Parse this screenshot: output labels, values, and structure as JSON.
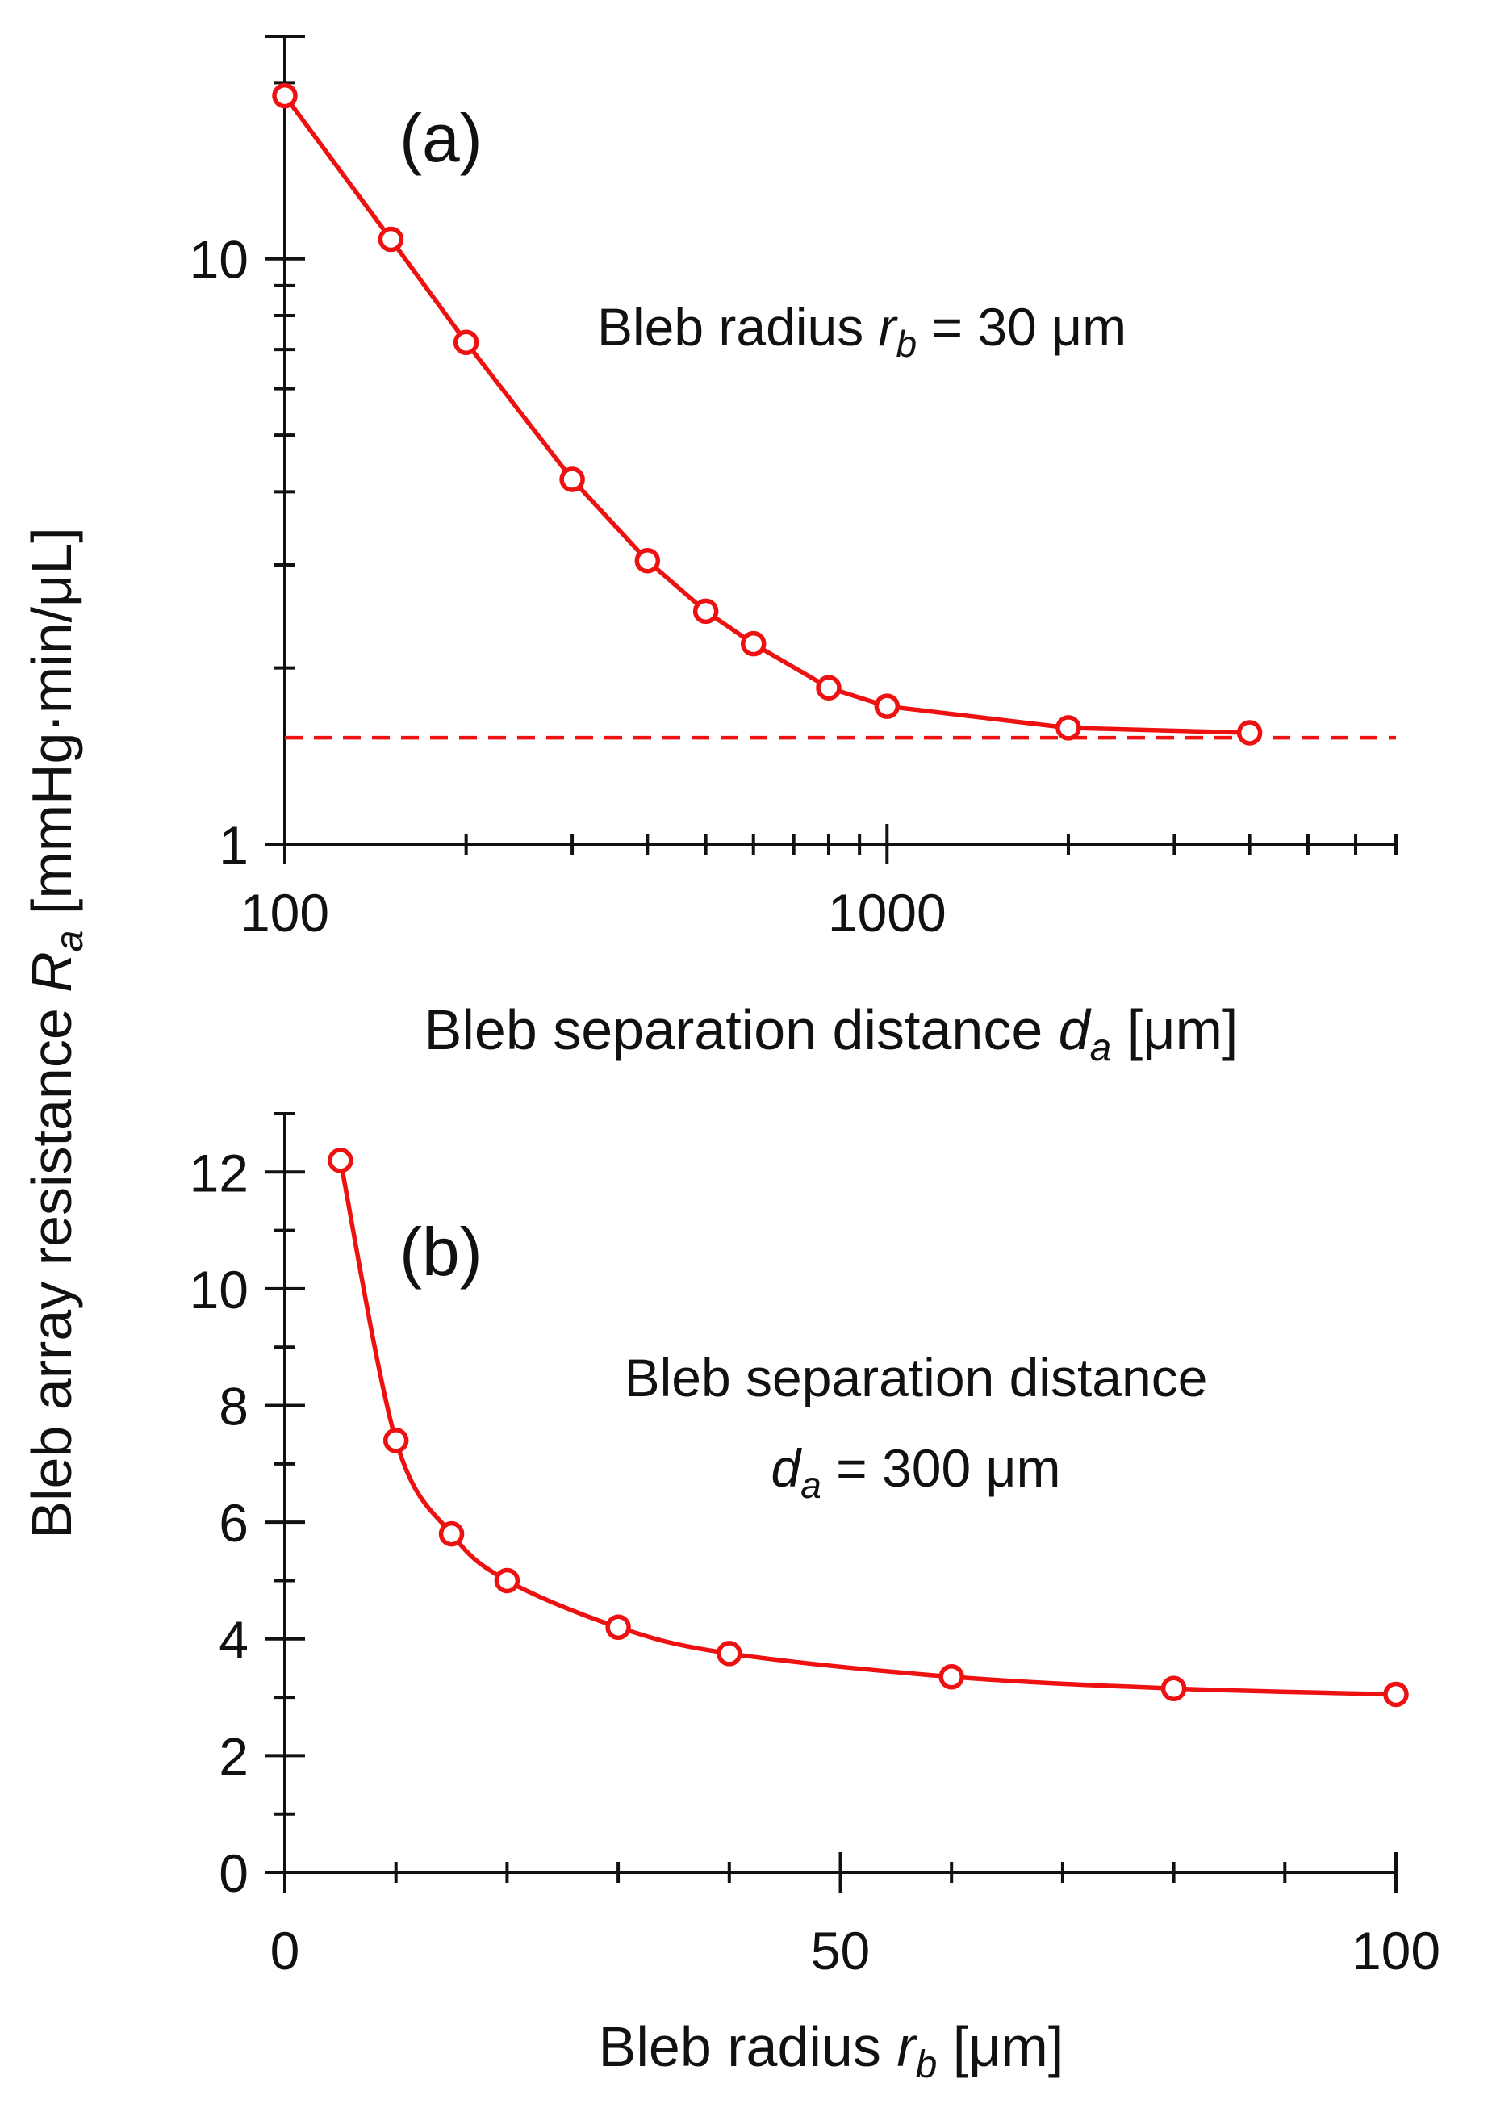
{
  "figure": {
    "shared_ylabel": "Bleb array resistance R_a [mmHg·min/μL]",
    "shared_ylabel_parts": {
      "pre": "Bleb array resistance ",
      "var": "R",
      "sub": "a",
      "post": " [mmHg·min/μL]"
    },
    "color": "#ee1111"
  },
  "chart_data": [
    {
      "type": "line",
      "panel": "(a)",
      "xscale": "log",
      "yscale": "log",
      "xlim": [
        100,
        7000
      ],
      "ylim": [
        1,
        24
      ],
      "xticks": [
        100,
        1000
      ],
      "xtick_labels": [
        "100",
        "1000"
      ],
      "yticks": [
        1,
        10
      ],
      "ytick_labels": [
        "1",
        "10"
      ],
      "xlabel": "Bleb separation distance d_a [μm]",
      "xlabel_parts": {
        "pre": "Bleb separation distance ",
        "var": "d",
        "sub": "a",
        "post": " [μm]"
      },
      "annotation": "Bleb radius r_b = 30 μm",
      "annotation_parts": {
        "pre": "Bleb radius ",
        "var": "r",
        "sub": "b",
        "post": " = 30 μm"
      },
      "x": [
        100,
        150,
        200,
        300,
        400,
        500,
        600,
        800,
        1000,
        2000,
        4000
      ],
      "y": [
        19.0,
        10.8,
        7.2,
        4.2,
        3.05,
        2.5,
        2.2,
        1.85,
        1.72,
        1.58,
        1.55
      ],
      "asymptote_y": 1.52
    },
    {
      "type": "line",
      "panel": "(b)",
      "xscale": "linear",
      "yscale": "linear",
      "xlim": [
        0,
        100
      ],
      "ylim": [
        0,
        13
      ],
      "xticks": [
        0,
        50,
        100
      ],
      "xtick_labels": [
        "0",
        "50",
        "100"
      ],
      "yticks": [
        0,
        2,
        4,
        6,
        8,
        10,
        12
      ],
      "ytick_labels": [
        "0",
        "2",
        "4",
        "6",
        "8",
        "10",
        "12"
      ],
      "xlabel": "Bleb radius r_b [μm]",
      "xlabel_parts": {
        "pre": "Bleb radius ",
        "var": "r",
        "sub": "b",
        "post": " [μm]"
      },
      "annotation_line1": "Bleb separation distance",
      "annotation_line2": "d_a = 300 μm",
      "annotation_line2_parts": {
        "var": "d",
        "sub": "a",
        "post": " = 300 μm"
      },
      "x": [
        5,
        10,
        15,
        20,
        30,
        40,
        60,
        80,
        100
      ],
      "y": [
        12.2,
        7.4,
        5.8,
        5.0,
        4.2,
        3.75,
        3.35,
        3.15,
        3.05
      ]
    }
  ]
}
